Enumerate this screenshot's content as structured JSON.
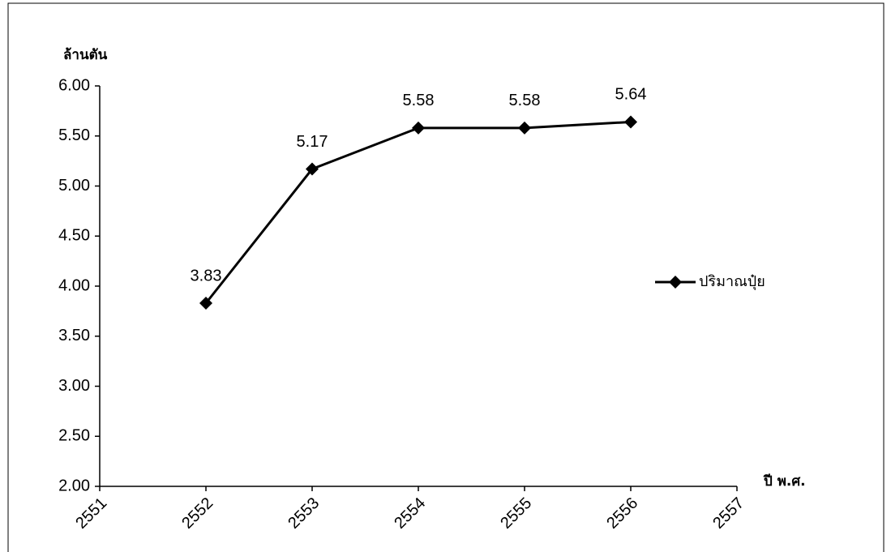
{
  "chart_data": {
    "type": "line",
    "y_axis_label": "ล้านตัน",
    "x_axis_label": "ปี พ.ศ.",
    "x": [
      2552,
      2553,
      2554,
      2555,
      2556
    ],
    "series": [
      {
        "name": "ปริมาณปุ๋ย",
        "color": "#000000",
        "values": [
          3.83,
          5.17,
          5.58,
          5.58,
          5.64
        ]
      }
    ],
    "xlim": [
      2551,
      2557
    ],
    "xticks": [
      2551,
      2552,
      2553,
      2554,
      2555,
      2556,
      2557
    ],
    "ylim": [
      2,
      6
    ],
    "yticks": [
      {
        "value": 2,
        "label": "2.00"
      },
      {
        "value": 2.5,
        "label": "2.50"
      },
      {
        "value": 3,
        "label": "3.00"
      },
      {
        "value": 3.5,
        "label": "3.50"
      },
      {
        "value": 4,
        "label": "4.00"
      },
      {
        "value": 4.5,
        "label": "4.50"
      },
      {
        "value": 5,
        "label": "5.00"
      },
      {
        "value": 5.5,
        "label": "5.50"
      },
      {
        "value": 6,
        "label": "6.00"
      }
    ],
    "legend": "right",
    "data_labels": true
  }
}
